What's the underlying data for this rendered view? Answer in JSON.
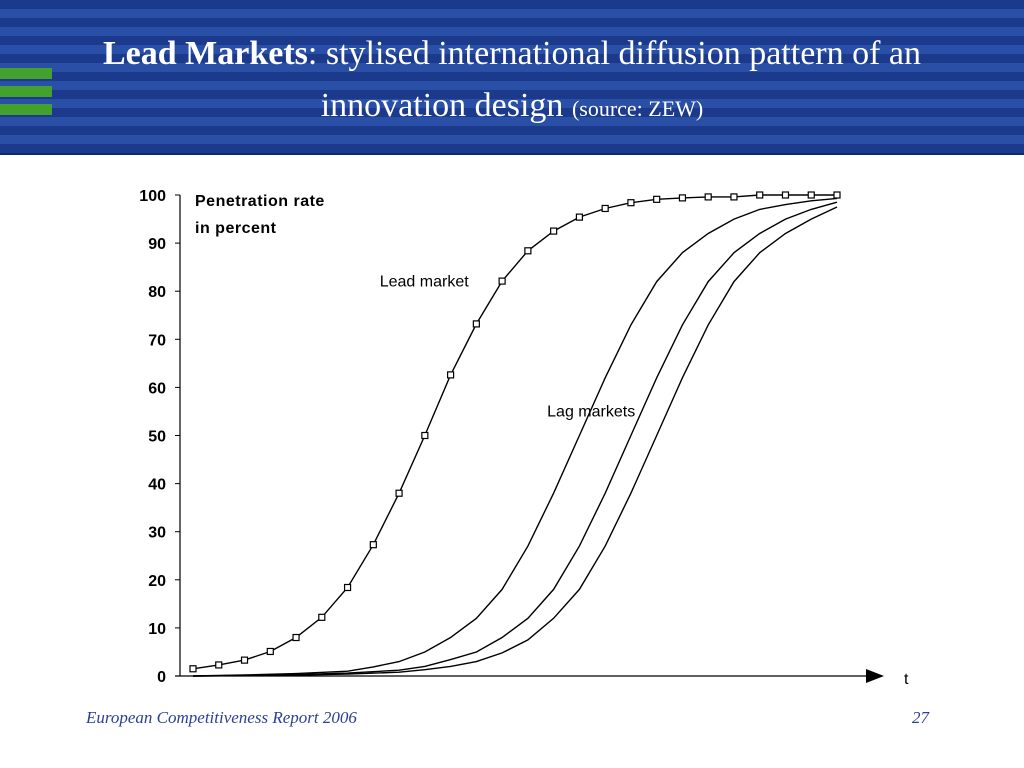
{
  "slide": {
    "title_bold": "Lead Markets",
    "title_rest": ": stylised international diffusion pattern of an",
    "title_line2": "innovation design",
    "title_source": "(source: ZEW)",
    "footer_left": "European Competitiveness Report 2006",
    "page_number": "27"
  },
  "colors": {
    "header_blue": "#1b3a8c",
    "accent_green": "#43a12e",
    "footer_text": "#2b3f96",
    "curve": "#000000"
  },
  "chart_data": {
    "type": "line",
    "ylabel_line1": "Penetration rate",
    "ylabel_line2": "in percent",
    "xlabel": "t",
    "ylim": [
      0,
      100
    ],
    "yticks": [
      0,
      10,
      20,
      30,
      40,
      50,
      60,
      70,
      80,
      90,
      100
    ],
    "xlim": [
      0,
      27
    ],
    "grid": false,
    "annotations": [
      {
        "text": "Lead market",
        "x": 9.5,
        "y": 82
      },
      {
        "text": "Lag markets",
        "x": 16,
        "y": 55
      }
    ],
    "series": [
      {
        "name": "Lead market",
        "marker": "square",
        "x": [
          0,
          1,
          2,
          3,
          4,
          5,
          6,
          7,
          8,
          9,
          10,
          11,
          12,
          13,
          14,
          15,
          16,
          17,
          18,
          19,
          20,
          21,
          22,
          23,
          24,
          25
        ],
        "values": [
          1.5,
          2.3,
          3.3,
          5.1,
          8.0,
          12.2,
          18.4,
          27.3,
          38.0,
          50.0,
          62.6,
          73.2,
          82.1,
          88.4,
          92.5,
          95.4,
          97.2,
          98.4,
          99.1,
          99.4,
          99.6,
          99.6,
          100,
          100,
          100,
          100
        ]
      },
      {
        "x": [
          0,
          2,
          4,
          6,
          7,
          8,
          9,
          10,
          11,
          12,
          13,
          14,
          15,
          16,
          17,
          18,
          19,
          20,
          21,
          22,
          23,
          24,
          25
        ],
        "values": [
          0,
          0.2,
          0.5,
          1.0,
          1.9,
          3.0,
          5.0,
          8.0,
          12.0,
          18.0,
          27.0,
          38.0,
          50.0,
          62.0,
          73.0,
          82.0,
          88.0,
          92.0,
          95.0,
          97.0,
          98.0,
          98.8,
          99.3
        ]
      },
      {
        "x": [
          0,
          2,
          4,
          6,
          8,
          9,
          10,
          11,
          12,
          13,
          14,
          15,
          16,
          17,
          18,
          19,
          20,
          21,
          22,
          23,
          24,
          25
        ],
        "values": [
          0,
          0.1,
          0.3,
          0.6,
          1.2,
          2.0,
          3.4,
          5.0,
          8.0,
          12.0,
          18.0,
          27.0,
          38.0,
          50.0,
          62.0,
          73.0,
          82.0,
          88.0,
          92.0,
          95.0,
          97.0,
          98.5
        ]
      },
      {
        "x": [
          0,
          2,
          4,
          6,
          8,
          9,
          10,
          11,
          12,
          13,
          14,
          15,
          16,
          17,
          18,
          19,
          20,
          21,
          22,
          23,
          24,
          25
        ],
        "values": [
          0,
          0.1,
          0.2,
          0.4,
          0.8,
          1.3,
          2.0,
          3.0,
          4.8,
          7.5,
          12.0,
          18.0,
          27.0,
          38.0,
          50.0,
          62.0,
          73.0,
          82.0,
          88.0,
          92.0,
          95.0,
          97.5
        ]
      }
    ]
  }
}
